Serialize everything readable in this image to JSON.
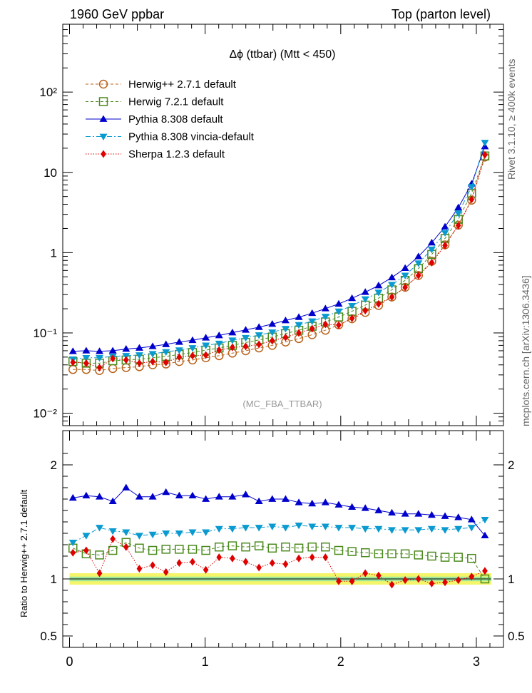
{
  "header": {
    "left": "1960 GeV ppbar",
    "right": "Top (parton level)"
  },
  "plot_title": "Δϕ (ttbar) (Mtt < 450)",
  "watermark": "(MC_FBA_TTBAR)",
  "side_text": {
    "rivet": "Rivet 3.1.10, ≥ 400k events",
    "source": "mcplots.cern.ch [arXiv:1306.3436]"
  },
  "ratio_ylabel": "Ratio to Herwig++ 2.7.1 default",
  "colors": {
    "herwigpp": "#b8621a",
    "herwig7": "#4b8a1e",
    "pythia": "#0000cc",
    "vincia": "#0a9ad0",
    "sherpa": "#e00000",
    "band_outer": "#f5f56a",
    "band_inner": "#9ee89e"
  },
  "chart_data": [
    {
      "type": "scatter",
      "panel": "main",
      "yscale": "log",
      "xlim": [
        -0.05,
        3.2
      ],
      "ylim": [
        0.007,
        700
      ],
      "yticks": [
        {
          "label": "10⁻²"
        },
        {
          "label": "10⁻¹"
        },
        {
          "label": "1"
        },
        {
          "label": "10"
        },
        {
          "label": "10²"
        }
      ],
      "legend_position": "top-left",
      "x": [
        0.025,
        0.123,
        0.221,
        0.319,
        0.417,
        0.515,
        0.613,
        0.711,
        0.809,
        0.907,
        1.005,
        1.103,
        1.201,
        1.299,
        1.397,
        1.495,
        1.593,
        1.691,
        1.789,
        1.887,
        1.985,
        2.083,
        2.181,
        2.279,
        2.377,
        2.475,
        2.573,
        2.671,
        2.769,
        2.867,
        2.965,
        3.063
      ],
      "series": [
        {
          "name": "Herwig++ 2.7.1 default",
          "color_key": "herwigpp",
          "marker": "open-circle",
          "line": "dashed",
          "values": [
            0.035,
            0.035,
            0.034,
            0.036,
            0.037,
            0.038,
            0.04,
            0.041,
            0.044,
            0.046,
            0.049,
            0.052,
            0.056,
            0.06,
            0.065,
            0.07,
            0.077,
            0.085,
            0.095,
            0.108,
            0.126,
            0.15,
            0.18,
            0.22,
            0.28,
            0.37,
            0.52,
            0.78,
            1.25,
            2.2,
            4.5,
            15.5
          ]
        },
        {
          "name": "Herwig 7.2.1 default",
          "color_key": "herwig7",
          "marker": "open-square",
          "line": "dashed",
          "values": [
            0.044,
            0.042,
            0.042,
            0.045,
            0.046,
            0.047,
            0.049,
            0.051,
            0.054,
            0.057,
            0.061,
            0.065,
            0.07,
            0.076,
            0.082,
            0.089,
            0.098,
            0.108,
            0.121,
            0.137,
            0.158,
            0.186,
            0.222,
            0.271,
            0.344,
            0.452,
            0.633,
            0.95,
            1.5,
            2.6,
            5.5,
            16
          ]
        },
        {
          "name": "Pythia 8.308 default",
          "color_key": "pythia",
          "marker": "filled-triangle-up",
          "line": "solid",
          "values": [
            0.059,
            0.06,
            0.059,
            0.06,
            0.063,
            0.065,
            0.068,
            0.072,
            0.077,
            0.081,
            0.087,
            0.093,
            0.101,
            0.109,
            0.118,
            0.129,
            0.143,
            0.157,
            0.176,
            0.201,
            0.23,
            0.27,
            0.322,
            0.389,
            0.49,
            0.64,
            0.894,
            1.33,
            2.1,
            3.64,
            7.2,
            21
          ]
        },
        {
          "name": "Pythia 8.308 vincia-default",
          "color_key": "vincia",
          "marker": "filled-triangle-down",
          "line": "dashdot",
          "values": [
            0.047,
            0.049,
            0.049,
            0.051,
            0.052,
            0.053,
            0.055,
            0.058,
            0.061,
            0.065,
            0.07,
            0.074,
            0.081,
            0.087,
            0.094,
            0.102,
            0.113,
            0.126,
            0.14,
            0.16,
            0.186,
            0.218,
            0.264,
            0.32,
            0.4,
            0.52,
            0.74,
            1.1,
            1.77,
            3.1,
            6.6,
            23.5
          ]
        },
        {
          "name": "Sherpa 1.2.3 default",
          "color_key": "sherpa",
          "marker": "filled-diamond",
          "line": "dotted",
          "values": [
            0.043,
            0.042,
            0.037,
            0.048,
            0.046,
            0.042,
            0.044,
            0.043,
            0.05,
            0.052,
            0.053,
            0.061,
            0.066,
            0.068,
            0.072,
            0.08,
            0.088,
            0.1,
            0.113,
            0.128,
            0.125,
            0.152,
            0.19,
            0.23,
            0.28,
            0.37,
            0.52,
            0.75,
            1.23,
            2.18,
            4.6,
            16.5
          ]
        }
      ]
    },
    {
      "type": "scatter",
      "panel": "ratio",
      "xlim": [
        -0.05,
        3.2
      ],
      "ylim": [
        0.4,
        2.3
      ],
      "xticks": [
        0,
        1,
        2,
        3
      ],
      "yticks": [
        0.5,
        1,
        2
      ],
      "ylabel": "Ratio to Herwig++ 2.7.1 default",
      "reference_band": {
        "center": 1.0,
        "inner": 0.02,
        "outer": 0.05
      },
      "x": [
        0.025,
        0.123,
        0.221,
        0.319,
        0.417,
        0.515,
        0.613,
        0.711,
        0.809,
        0.907,
        1.005,
        1.103,
        1.201,
        1.299,
        1.397,
        1.495,
        1.593,
        1.691,
        1.789,
        1.887,
        1.985,
        2.083,
        2.181,
        2.279,
        2.377,
        2.475,
        2.573,
        2.671,
        2.769,
        2.867,
        2.965,
        3.063
      ],
      "series": [
        {
          "name": "Herwig 7.2.1 default",
          "color_key": "herwig7",
          "marker": "open-square",
          "line": "dashed",
          "values": [
            1.27,
            1.22,
            1.21,
            1.25,
            1.32,
            1.27,
            1.25,
            1.26,
            1.26,
            1.26,
            1.25,
            1.28,
            1.29,
            1.28,
            1.29,
            1.27,
            1.28,
            1.27,
            1.28,
            1.28,
            1.25,
            1.24,
            1.23,
            1.22,
            1.22,
            1.22,
            1.21,
            1.2,
            1.19,
            1.19,
            1.18,
            1.0
          ]
        },
        {
          "name": "Pythia 8.308 default",
          "color_key": "pythia",
          "marker": "filled-triangle-up",
          "line": "solid",
          "values": [
            1.71,
            1.73,
            1.72,
            1.68,
            1.8,
            1.72,
            1.72,
            1.76,
            1.73,
            1.73,
            1.7,
            1.72,
            1.72,
            1.74,
            1.68,
            1.7,
            1.7,
            1.67,
            1.66,
            1.67,
            1.65,
            1.63,
            1.62,
            1.6,
            1.58,
            1.57,
            1.57,
            1.56,
            1.55,
            1.54,
            1.52,
            1.38
          ]
        },
        {
          "name": "Pythia 8.308 vincia-default",
          "color_key": "vincia",
          "marker": "filled-triangle-down",
          "line": "dashdot",
          "values": [
            1.32,
            1.38,
            1.45,
            1.42,
            1.41,
            1.38,
            1.39,
            1.4,
            1.4,
            1.41,
            1.41,
            1.44,
            1.44,
            1.45,
            1.45,
            1.46,
            1.45,
            1.47,
            1.46,
            1.46,
            1.45,
            1.45,
            1.44,
            1.44,
            1.43,
            1.43,
            1.43,
            1.44,
            1.43,
            1.44,
            1.45,
            1.52
          ]
        },
        {
          "name": "Sherpa 1.2.3 default",
          "color_key": "sherpa",
          "marker": "filled-diamond",
          "line": "dotted",
          "values": [
            1.23,
            1.25,
            1.05,
            1.35,
            1.28,
            1.09,
            1.12,
            1.06,
            1.14,
            1.15,
            1.08,
            1.19,
            1.18,
            1.15,
            1.1,
            1.14,
            1.13,
            1.18,
            1.19,
            1.19,
            0.98,
            0.98,
            1.05,
            1.03,
            0.95,
            0.99,
            1.0,
            0.96,
            0.97,
            0.99,
            1.02,
            1.07
          ]
        }
      ]
    }
  ]
}
